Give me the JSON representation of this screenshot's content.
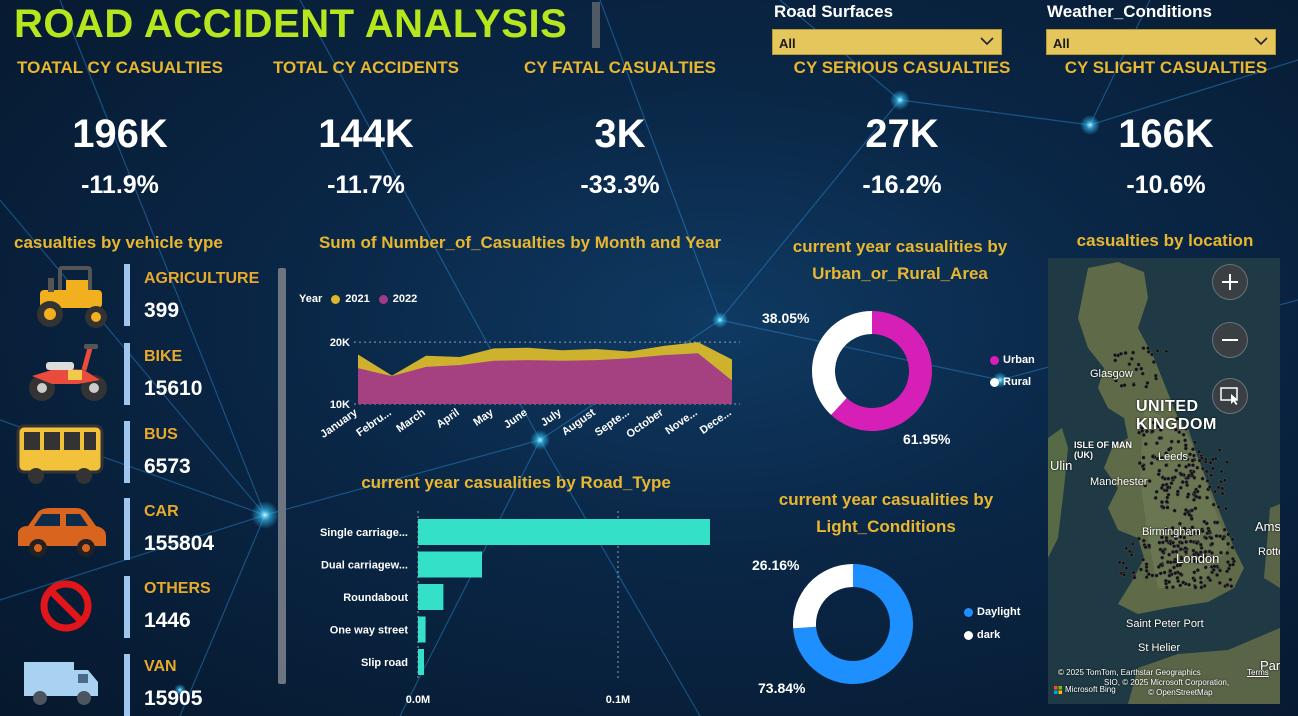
{
  "header": {
    "title": "ROAD ACCIDENT ANALYSIS"
  },
  "slicers": [
    {
      "label": "Road Surfaces",
      "value": "All"
    },
    {
      "label": "Weather_Conditions",
      "value": "All"
    }
  ],
  "kpis": [
    {
      "label": "TOATAL CY CASUALTIES",
      "value": "196K",
      "change": "-11.9%"
    },
    {
      "label": "TOTAL CY ACCIDENTS",
      "value": "144K",
      "change": "-11.7%"
    },
    {
      "label": "CY FATAL CASUALTIES",
      "value": "3K",
      "change": "-33.3%"
    },
    {
      "label": "CY SERIOUS CASUALTIES",
      "value": "27K",
      "change": "-16.2%"
    },
    {
      "label": "CY SLIGHT CASUALTIES",
      "value": "166K",
      "change": "-10.6%"
    }
  ],
  "vehicles": {
    "title": "casualties by vehicle type",
    "items": [
      {
        "label": "AGRICULTURE",
        "value": "399",
        "icon": "tractor-icon"
      },
      {
        "label": "BIKE",
        "value": "15610",
        "icon": "motorbike-icon"
      },
      {
        "label": "BUS",
        "value": "6573",
        "icon": "bus-icon"
      },
      {
        "label": "CAR",
        "value": "155804",
        "icon": "car-icon"
      },
      {
        "label": "OTHERS",
        "value": "1446",
        "icon": "no-entry-icon"
      },
      {
        "label": "VAN",
        "value": "15905",
        "icon": "van-icon"
      }
    ]
  },
  "area_chart": {
    "title": "Sum of Number_of_Casualties by Month and Year",
    "legend_title": "Year",
    "series_colors": {
      "2021": "#d9b92b",
      "2022": "#a23b86"
    }
  },
  "bar_chart": {
    "title": "current year casualities by Road_Type"
  },
  "urban_chart": {
    "title": "current year casualities by Urban_or_Rural_Area",
    "labels": [
      "38.05%",
      "61.95%"
    ],
    "legend": [
      {
        "name": "Urban",
        "color": "#d61fb6"
      },
      {
        "name": "Rural",
        "color": "#ffffff"
      }
    ]
  },
  "light_chart": {
    "title": "current year casualities by Light_Conditions",
    "labels": [
      "26.16%",
      "73.84%"
    ],
    "legend": [
      {
        "name": "Daylight",
        "color": "#1e8fff"
      },
      {
        "name": "dark",
        "color": "#ffffff"
      }
    ]
  },
  "map": {
    "title": "casualties by location",
    "places": {
      "uk": "UNITED KINGDOM",
      "glasgow": "Glasgow",
      "isle_of_man": "ISLE OF MAN (UK)",
      "leeds": "Leeds",
      "manchester": "Manchester",
      "birmingham": "Birmingham",
      "london": "London",
      "amsterdam": "Amste",
      "rotterdam": "Rotte",
      "saint_peter_port": "Saint Peter Port",
      "st_helier": "St Helier",
      "paris": "Paris",
      "edge_label": "Ulin"
    },
    "credits": {
      "line1": "© 2025 TomTom, Earthstar Geographics",
      "line2": "SIO, © 2025 Microsoft Corporation,",
      "line3": "© OpenStreetMap",
      "terms": "Terms",
      "brand": "Microsoft Bing"
    }
  },
  "chart_data": [
    {
      "type": "area",
      "title": "Sum of Number_of_Casualties by Month and Year",
      "x": [
        "January",
        "February",
        "March",
        "April",
        "May",
        "June",
        "July",
        "August",
        "September",
        "October",
        "November",
        "December"
      ],
      "x_tick_labels": [
        "January",
        "Febru...",
        "March",
        "April",
        "May",
        "June",
        "July",
        "August",
        "Septe...",
        "October",
        "Nove...",
        "Dece..."
      ],
      "series": [
        {
          "name": "2021",
          "values": [
            18000,
            14600,
            17800,
            17600,
            19000,
            19100,
            18700,
            18900,
            18500,
            19400,
            20000,
            17200
          ]
        },
        {
          "name": "2022",
          "values": [
            15800,
            14500,
            16000,
            16300,
            17000,
            17100,
            17000,
            17100,
            17400,
            17900,
            18200,
            13800
          ]
        }
      ],
      "y_ticks": [
        10000,
        20000
      ],
      "y_tick_labels": [
        "10K",
        "20K"
      ],
      "ylim": [
        10000,
        21000
      ],
      "legend": "top-left"
    },
    {
      "type": "bar",
      "orientation": "horizontal",
      "title": "current year casualities by Road_Type",
      "categories": [
        "Single carriage...",
        "Dual carriagew...",
        "Roundabout",
        "One way street",
        "Slip road"
      ],
      "values": [
        146000,
        32000,
        12700,
        3800,
        3000
      ],
      "x_ticks": [
        0,
        100000
      ],
      "x_tick_labels": [
        "0.0M",
        "0.1M"
      ],
      "xlim": [
        0,
        150000
      ]
    },
    {
      "type": "pie",
      "donut": true,
      "title": "current year casualities by Urban_or_Rural_Area",
      "labels": [
        "Urban",
        "Rural"
      ],
      "values": [
        61.95,
        38.05
      ]
    },
    {
      "type": "pie",
      "donut": true,
      "title": "current year casualities by Light_Conditions",
      "labels": [
        "Daylight",
        "dark"
      ],
      "values": [
        73.84,
        26.16
      ]
    }
  ]
}
